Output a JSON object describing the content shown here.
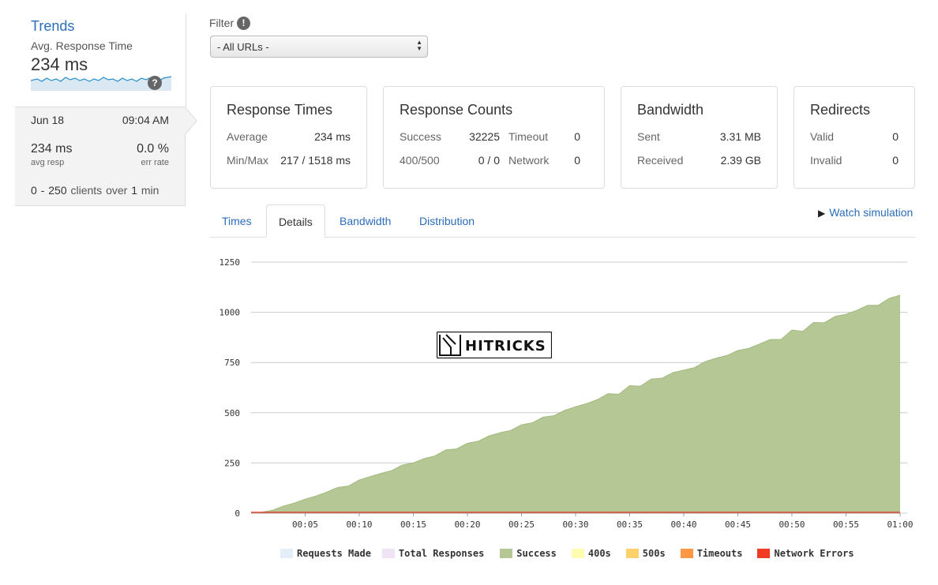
{
  "sidebar": {
    "title": "Trends",
    "avg_label": "Avg. Response Time",
    "avg_value": "234 ms",
    "help_icon": "?",
    "detail": {
      "date": "Jun 18",
      "time": "09:04 AM",
      "resp_value": "234 ms",
      "resp_label": "avg resp",
      "err_value": "0.0 %",
      "err_label": "err rate",
      "clients_from": "0",
      "clients_sep": "-",
      "clients_to": "250",
      "clients_text1": "clients over",
      "clients_duration": "1",
      "clients_text2": "min"
    }
  },
  "filter": {
    "label": "Filter",
    "help_icon": "!",
    "value": "- All URLs -"
  },
  "cards": {
    "response_times": {
      "title": "Response Times",
      "average_label": "Average",
      "average_value": "234 ms",
      "minmax_label": "Min/Max",
      "minmax_value": "217 / 1518 ms"
    },
    "response_counts": {
      "title": "Response Counts",
      "success_label": "Success",
      "success_value": "32225",
      "timeout_label": "Timeout",
      "timeout_value": "0",
      "e400_label": "400/500",
      "e400_value": "0 / 0",
      "network_label": "Network",
      "network_value": "0"
    },
    "bandwidth": {
      "title": "Bandwidth",
      "sent_label": "Sent",
      "sent_value": "3.31 MB",
      "received_label": "Received",
      "received_value": "2.39 GB"
    },
    "redirects": {
      "title": "Redirects",
      "valid_label": "Valid",
      "valid_value": "0",
      "invalid_label": "Invalid",
      "invalid_value": "0"
    }
  },
  "tabs": [
    {
      "label": "Times",
      "active": false
    },
    {
      "label": "Details",
      "active": true
    },
    {
      "label": "Bandwidth",
      "active": false
    },
    {
      "label": "Distribution",
      "active": false
    }
  ],
  "watch_simulation": "Watch simulation",
  "watermark": "HITRICKS",
  "colors": {
    "success": "#b5c795",
    "success_line": "#a3b97f",
    "requests_made": "#e3eef8",
    "total_responses": "#eee4f5",
    "e400s": "#fefcb0",
    "e500s": "#fdd26a",
    "timeouts": "#fb9745",
    "network_errors": "#ef3b24",
    "link": "#2a6ebb"
  },
  "chart_data": {
    "type": "area",
    "x_ticks": [
      "00:05",
      "00:10",
      "00:15",
      "00:20",
      "00:25",
      "00:30",
      "00:35",
      "00:40",
      "00:45",
      "00:50",
      "00:55",
      "01:00"
    ],
    "y_ticks": [
      "0",
      "250",
      "500",
      "750",
      "1000",
      "1250"
    ],
    "ylim": [
      0,
      1250
    ],
    "xlim_seconds": [
      0,
      60
    ],
    "grid": true,
    "legend_position": "bottom",
    "legend": [
      "Requests Made",
      "Total Responses",
      "Success",
      "400s",
      "500s",
      "Timeouts",
      "Network Errors"
    ],
    "series": [
      {
        "name": "Success",
        "x": [
          0,
          1,
          2,
          3,
          4,
          5,
          6,
          7,
          8,
          9,
          10,
          11,
          12,
          13,
          14,
          15,
          16,
          17,
          18,
          19,
          20,
          21,
          22,
          23,
          24,
          25,
          26,
          27,
          28,
          29,
          30,
          31,
          32,
          33,
          34,
          35,
          36,
          37,
          38,
          39,
          40,
          41,
          42,
          43,
          44,
          45,
          46,
          47,
          48,
          49,
          50,
          51,
          52,
          53,
          54,
          55,
          56,
          57,
          58,
          59,
          60
        ],
        "values": [
          0,
          5,
          15,
          35,
          50,
          70,
          85,
          105,
          128,
          135,
          165,
          182,
          198,
          212,
          240,
          250,
          272,
          285,
          315,
          320,
          348,
          358,
          385,
          400,
          412,
          440,
          450,
          478,
          485,
          512,
          530,
          545,
          565,
          595,
          592,
          635,
          632,
          668,
          672,
          700,
          712,
          725,
          755,
          772,
          785,
          810,
          820,
          842,
          865,
          865,
          912,
          905,
          950,
          948,
          980,
          990,
          1010,
          1035,
          1035,
          1070,
          1085
        ]
      },
      {
        "name": "Network Errors",
        "x": [
          0,
          60
        ],
        "values": [
          0,
          0
        ]
      }
    ]
  }
}
